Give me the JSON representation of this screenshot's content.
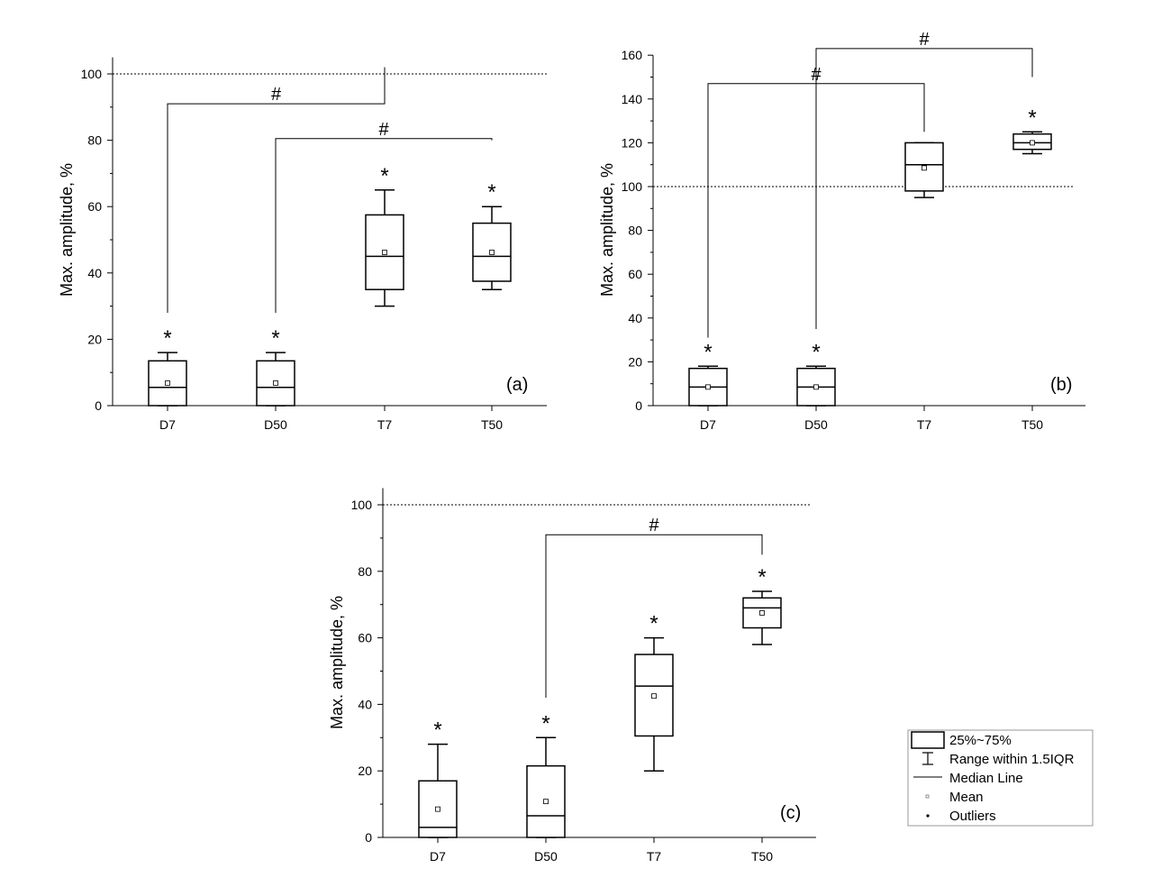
{
  "chart_data": [
    {
      "type": "box",
      "panel_label": "(a)",
      "ylabel": "Max. amplitude, %",
      "ylim": [
        0,
        105
      ],
      "yticks": [
        0,
        20,
        40,
        60,
        80,
        100
      ],
      "reference_line": 100,
      "categories": [
        "D7",
        "D50",
        "T7",
        "T50"
      ],
      "boxes": [
        {
          "category": "D7",
          "whisker_low": 0,
          "q1": 0,
          "median": 5.5,
          "q3": 13.5,
          "whisker_high": 16,
          "mean": 6.8,
          "star": "*"
        },
        {
          "category": "D50",
          "whisker_low": 0,
          "q1": 0,
          "median": 5.5,
          "q3": 13.5,
          "whisker_high": 16,
          "mean": 6.8,
          "star": "*"
        },
        {
          "category": "T7",
          "whisker_low": 30,
          "q1": 35,
          "median": 45,
          "q3": 57.5,
          "whisker_high": 65,
          "mean": 46.2,
          "star": "*"
        },
        {
          "category": "T50",
          "whisker_low": 35,
          "q1": 37.5,
          "median": 45,
          "q3": 55,
          "whisker_high": 60,
          "mean": 46.2,
          "star": "*"
        }
      ],
      "brackets": [
        {
          "from": "D7",
          "to": "T7",
          "left_start": 28,
          "right_start": 102,
          "top": 91,
          "label": "#"
        },
        {
          "from": "D50",
          "to": "T50",
          "left_start": 28,
          "right_start": 80,
          "top": 80.5,
          "label": "#"
        }
      ]
    },
    {
      "type": "box",
      "panel_label": "(b)",
      "ylabel": "Max. amplitude, %",
      "ylim": [
        0,
        160
      ],
      "yticks": [
        0,
        20,
        40,
        60,
        80,
        100,
        120,
        140,
        160
      ],
      "reference_line": 100,
      "categories": [
        "D7",
        "D50",
        "T7",
        "T50"
      ],
      "boxes": [
        {
          "category": "D7",
          "whisker_low": 0,
          "q1": 0,
          "median": 8.5,
          "q3": 17,
          "whisker_high": 18,
          "mean": 8.5,
          "star": "*"
        },
        {
          "category": "D50",
          "whisker_low": 0,
          "q1": 0,
          "median": 8.5,
          "q3": 17,
          "whisker_high": 18,
          "mean": 8.5,
          "star": "*"
        },
        {
          "category": "T7",
          "whisker_low": 95,
          "q1": 98,
          "median": 110,
          "q3": 120,
          "whisker_high": 120,
          "mean": 108.5,
          "star": ""
        },
        {
          "category": "T50",
          "whisker_low": 115,
          "q1": 117,
          "median": 120,
          "q3": 124,
          "whisker_high": 125,
          "mean": 120,
          "star": "*"
        }
      ],
      "brackets": [
        {
          "from": "D7",
          "to": "T7",
          "left_start": 31,
          "right_start": 125,
          "top": 147,
          "label": "#"
        },
        {
          "from": "D50",
          "to": "T50",
          "left_start": 35,
          "right_start": 150,
          "top": 163,
          "label": "#"
        }
      ]
    },
    {
      "type": "box",
      "panel_label": "(c)",
      "ylabel": "Max. amplitude, %",
      "ylim": [
        0,
        105
      ],
      "yticks": [
        0,
        20,
        40,
        60,
        80,
        100
      ],
      "reference_line": 100,
      "categories": [
        "D7",
        "D50",
        "T7",
        "T50"
      ],
      "boxes": [
        {
          "category": "D7",
          "whisker_low": 0,
          "q1": 0,
          "median": 3,
          "q3": 17,
          "whisker_high": 28,
          "mean": 8.5,
          "star": "*"
        },
        {
          "category": "D50",
          "whisker_low": 0,
          "q1": 0,
          "median": 6.5,
          "q3": 21.5,
          "whisker_high": 30,
          "mean": 10.8,
          "star": "*"
        },
        {
          "category": "T7",
          "whisker_low": 20,
          "q1": 30.5,
          "median": 45.5,
          "q3": 55,
          "whisker_high": 60,
          "mean": 42.5,
          "star": "*"
        },
        {
          "category": "T50",
          "whisker_low": 58,
          "q1": 63,
          "median": 69,
          "q3": 72,
          "whisker_high": 74,
          "mean": 67.5,
          "star": "*"
        }
      ],
      "brackets": [
        {
          "from": "D50",
          "to": "T50",
          "left_start": 42,
          "right_start": 85,
          "top": 91,
          "label": "#"
        }
      ]
    }
  ],
  "legend": {
    "items": [
      {
        "symbol": "box",
        "label": "25%~75%"
      },
      {
        "symbol": "range",
        "label": "Range within 1.5IQR"
      },
      {
        "symbol": "median",
        "label": "Median Line"
      },
      {
        "symbol": "mean",
        "label": "Mean"
      },
      {
        "symbol": "outlier",
        "label": "Outliers"
      }
    ]
  }
}
